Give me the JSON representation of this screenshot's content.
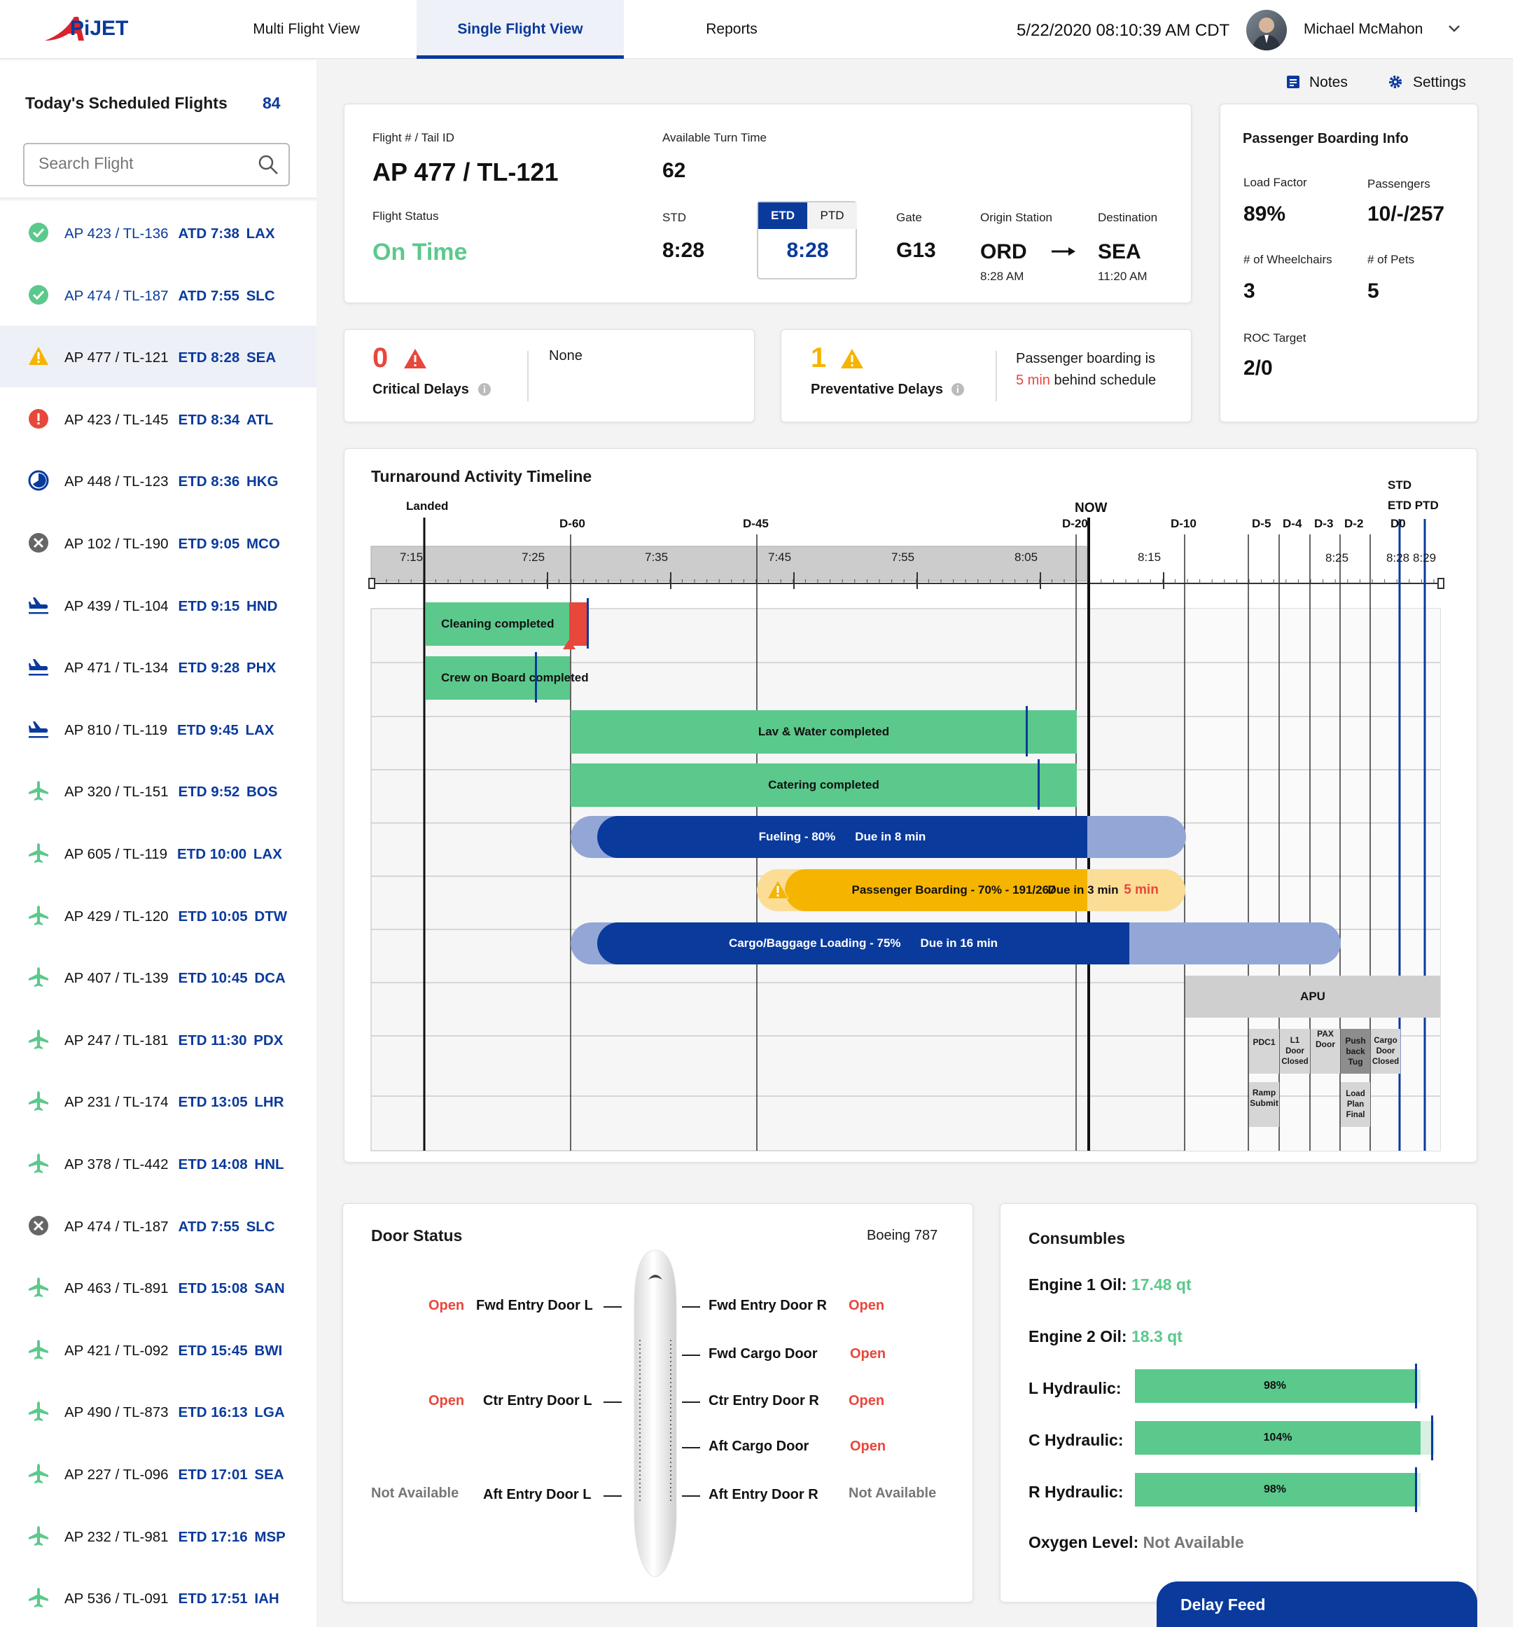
{
  "header": {
    "logo_text": "APiJET",
    "tabs": [
      {
        "label": "Multi Flight View"
      },
      {
        "label": "Single Flight View"
      },
      {
        "label": "Reports"
      }
    ],
    "datetime": "5/22/2020 08:10:39 AM CDT",
    "user_name": "Michael McMahon"
  },
  "sidebar": {
    "title": "Today's Scheduled Flights",
    "count": "84",
    "search_placeholder": "Search Flight",
    "flights": [
      {
        "id": "AP 423 / TL-136",
        "time": "ATD 7:38",
        "dest": "LAX",
        "icon": "check-circle-icon"
      },
      {
        "id": "AP 474 / TL-187",
        "time": "ATD 7:55",
        "dest": "SLC",
        "icon": "check-circle-icon"
      },
      {
        "id": "AP 477 / TL-121",
        "time": "ETD 8:28",
        "dest": "SEA",
        "icon": "warning-triangle-icon"
      },
      {
        "id": "AP 423 / TL-145",
        "time": "ETD 8:34",
        "dest": "ATL",
        "icon": "alert-circle-icon"
      },
      {
        "id": "AP 448 / TL-123",
        "time": "ETD 8:36",
        "dest": "HKG",
        "icon": "clock-circle-icon"
      },
      {
        "id": "AP 102 / TL-190",
        "time": "ETD 9:05",
        "dest": "MCO",
        "icon": "cancel-circle-icon"
      },
      {
        "id": "AP 439 / TL-104",
        "time": "ETD 9:15",
        "dest": "HND",
        "icon": "departing-plane-icon"
      },
      {
        "id": "AP 471 / TL-134",
        "time": "ETD 9:28",
        "dest": "PHX",
        "icon": "departing-plane-icon"
      },
      {
        "id": "AP 810 / TL-119",
        "time": "ETD 9:45",
        "dest": "LAX",
        "icon": "departing-plane-icon"
      },
      {
        "id": "AP 320 / TL-151",
        "time": "ETD 9:52",
        "dest": "BOS",
        "icon": "plane-icon"
      },
      {
        "id": "AP 605 / TL-119",
        "time": "ETD 10:00",
        "dest": "LAX",
        "icon": "plane-icon"
      },
      {
        "id": "AP 429 / TL-120",
        "time": "ETD 10:05",
        "dest": "DTW",
        "icon": "plane-icon"
      },
      {
        "id": "AP 407 / TL-139",
        "time": "ETD 10:45",
        "dest": "DCA",
        "icon": "plane-icon"
      },
      {
        "id": "AP 247 / TL-181",
        "time": "ETD 11:30",
        "dest": "PDX",
        "icon": "plane-icon"
      },
      {
        "id": "AP 231 / TL-174",
        "time": "ETD 13:05",
        "dest": "LHR",
        "icon": "plane-icon"
      },
      {
        "id": "AP 378 / TL-442",
        "time": "ETD 14:08",
        "dest": "HNL",
        "icon": "plane-icon"
      },
      {
        "id": "AP 474 / TL-187",
        "time": "ATD 7:55",
        "dest": "SLC",
        "icon": "cancel-circle-icon"
      },
      {
        "id": "AP 463 / TL-891",
        "time": "ETD 15:08",
        "dest": "SAN",
        "icon": "plane-icon"
      },
      {
        "id": "AP 421 / TL-092",
        "time": "ETD 15:45",
        "dest": "BWI",
        "icon": "plane-icon"
      },
      {
        "id": "AP 490 / TL-873",
        "time": "ETD 16:13",
        "dest": "LGA",
        "icon": "plane-icon"
      },
      {
        "id": "AP 227 / TL-096",
        "time": "ETD 17:01",
        "dest": "SEA",
        "icon": "plane-icon"
      },
      {
        "id": "AP 232 / TL-981",
        "time": "ETD 17:16",
        "dest": "MSP",
        "icon": "plane-icon"
      },
      {
        "id": "AP 536 / TL-091",
        "time": "ETD 17:51",
        "dest": "IAH",
        "icon": "plane-icon"
      }
    ]
  },
  "toolbar": {
    "notes": "Notes",
    "settings": "Settings"
  },
  "flight": {
    "id_label": "Flight # / Tail ID",
    "id": "AP 477 / TL-121",
    "turn_label": "Available Turn Time",
    "turn": "62",
    "status_label": "Flight Status",
    "status": "On Time",
    "std_label": "STD",
    "std": "8:28",
    "etd_tab": "ETD",
    "ptd_tab": "PTD",
    "etd": "8:28",
    "gate_label": "Gate",
    "gate": "G13",
    "origin_label": "Origin Station",
    "origin": "ORD",
    "origin_time": "8:28 AM",
    "dest_label": "Destination",
    "dest": "SEA",
    "dest_time": "11:20 AM"
  },
  "delays": {
    "critical_count": "0",
    "critical_label": "Critical Delays",
    "critical_text": "None",
    "prev_count": "1",
    "prev_label": "Preventative Delays",
    "prev_text_1": "Passenger boarding is",
    "prev_text_red": "5 min",
    "prev_text_2": "behind schedule"
  },
  "boarding": {
    "title": "Passenger Boarding Info",
    "load_label": "Load Factor",
    "load": "89%",
    "pax_label": "Passengers",
    "pax": "10/-/257",
    "wc_label": "# of Wheelchairs",
    "wc": "3",
    "pets_label": "# of Pets",
    "pets": "5",
    "roc_label": "ROC Target",
    "roc": "2/0"
  },
  "timeline": {
    "title": "Turnaround Activity Timeline",
    "markers": {
      "landed": "Landed",
      "d60": "D-60",
      "d45": "D-45",
      "now": "NOW",
      "d20": "D-20",
      "d10": "D-10",
      "d5": "D-5",
      "d4": "D-4",
      "d3": "D-3",
      "d2": "D-2",
      "std": "STD",
      "etd_ptd": "ETD PTD",
      "d0": "D0"
    },
    "ticks": [
      "7:15",
      "7:25",
      "7:35",
      "7:45",
      "7:55",
      "8:05",
      "8:15",
      "8:25",
      "8:28",
      "8:29"
    ],
    "activities": {
      "cleaning": "Cleaning completed",
      "crew": "Crew on Board completed",
      "lav": "Lav & Water completed",
      "catering": "Catering completed",
      "fueling": "Fueling - 80%",
      "fueling_due": "Due in 8 min",
      "boarding": "Passenger Boarding - 70% - 191/267",
      "boarding_due": "Due in 3 min",
      "boarding_late": "5 min",
      "cargo": "Cargo/Baggage Loading - 75%",
      "cargo_due": "Due in 16 min",
      "apu": "APU",
      "pdc1": "PDC1",
      "l1door": "L1 Door Closed",
      "paxdoor": "PAX Door",
      "pushback": "Push back Tug",
      "cargodoor": "Cargo Door Closed",
      "ramp": "Ramp Submit",
      "loadplan": "Load Plan Final"
    }
  },
  "doors": {
    "title": "Door Status",
    "aircraft": "Boeing 787",
    "fwd_l": "Fwd Entry Door L",
    "fwd_l_status": "Open",
    "ctr_l": "Ctr Entry Door L",
    "ctr_l_status": "Open",
    "aft_l": "Aft Entry Door L",
    "aft_l_status": "Not Available",
    "fwd_r": "Fwd Entry Door R",
    "fwd_r_status": "Open",
    "fwd_cargo": "Fwd Cargo Door",
    "fwd_cargo_status": "Open",
    "ctr_r": "Ctr Entry Door R",
    "ctr_r_status": "Open",
    "aft_cargo": "Aft Cargo Door",
    "aft_cargo_status": "Open",
    "aft_r": "Aft Entry Door R",
    "aft_r_status": "Not Available"
  },
  "consumables": {
    "title": "Consumbles",
    "eng1_label": "Engine 1 Oil:",
    "eng1": "17.48 qt",
    "eng2_label": "Engine 2 Oil:",
    "eng2": "18.3 qt",
    "lhyd_label": "L Hydraulic:",
    "lhyd": "98%",
    "chyd_label": "C Hydraulic:",
    "chyd": "104%",
    "rhyd_label": "R Hydraulic:",
    "rhyd": "98%",
    "oxy_label": "Oxygen Level:",
    "oxy": "Not Available"
  },
  "delay_feed": "Delay Feed",
  "colors": {
    "brand": "#0a3a9c",
    "green": "#5bc98b",
    "red": "#e8473b",
    "amber": "#f5b400",
    "light_blue": "#93a7d6"
  }
}
